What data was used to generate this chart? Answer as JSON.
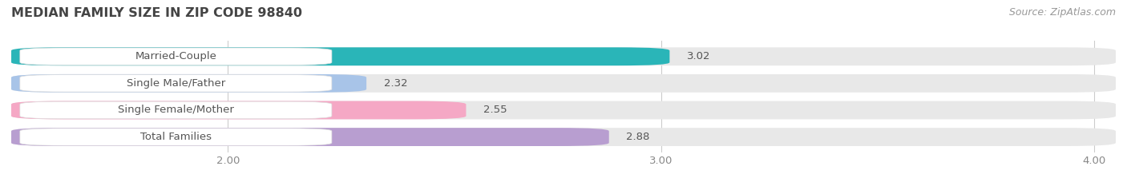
{
  "title": "MEDIAN FAMILY SIZE IN ZIP CODE 98840",
  "source": "Source: ZipAtlas.com",
  "categories": [
    "Married-Couple",
    "Single Male/Father",
    "Single Female/Mother",
    "Total Families"
  ],
  "values": [
    3.02,
    2.32,
    2.55,
    2.88
  ],
  "colors": [
    "#2ab5b8",
    "#a8c4e8",
    "#f5a8c5",
    "#b89ed0"
  ],
  "bar_bg_color": "#e8e8e8",
  "xlim_min": 1.5,
  "xlim_max": 4.05,
  "xticks": [
    2.0,
    3.0,
    4.0
  ],
  "xtick_labels": [
    "2.00",
    "3.00",
    "4.00"
  ],
  "background_color": "#ffffff",
  "bar_height": 0.68,
  "bar_gap": 0.12,
  "title_fontsize": 11.5,
  "label_fontsize": 9.5,
  "value_fontsize": 9.5,
  "source_fontsize": 9,
  "label_pill_color": "#ffffff",
  "label_text_color": "#555555",
  "value_text_color": "#555555",
  "grid_color": "#cccccc"
}
